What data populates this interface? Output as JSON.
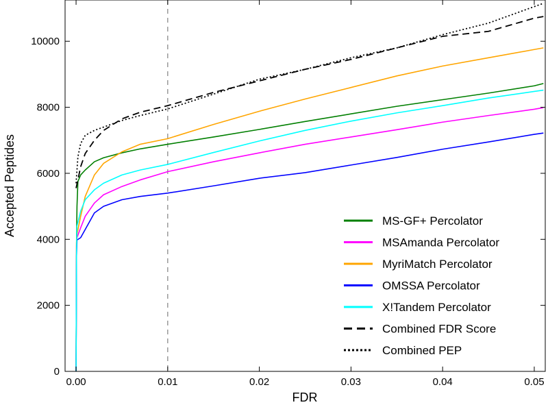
{
  "chart_data": {
    "type": "line",
    "title": "",
    "xlabel": "FDR",
    "ylabel": "Accepted Peptides",
    "xlim": [
      -0.0012,
      0.0512
    ],
    "ylim": [
      0,
      11250
    ],
    "x_ticks": [
      0.0,
      0.01,
      0.02,
      0.03,
      0.04,
      0.05
    ],
    "x_tick_labels": [
      "0.00",
      "0.01",
      "0.02",
      "0.03",
      "0.04",
      "0.05"
    ],
    "y_ticks": [
      0,
      2000,
      4000,
      6000,
      8000,
      10000
    ],
    "y_tick_labels": [
      "0",
      "2000",
      "4000",
      "6000",
      "8000",
      "10000"
    ],
    "grid": false,
    "legend_position": "lower-right",
    "reference_line": {
      "x": 0.01,
      "style": "dashed",
      "color": "#808080"
    },
    "series": [
      {
        "name": "MS-GF+ Percolator",
        "color": "#007f00",
        "style": "solid",
        "points": [
          [
            0.0,
            0
          ],
          [
            5e-05,
            3900
          ],
          [
            0.0001,
            5000
          ],
          [
            0.0002,
            5750
          ],
          [
            0.0005,
            5950
          ],
          [
            0.001,
            6100
          ],
          [
            0.002,
            6350
          ],
          [
            0.003,
            6470
          ],
          [
            0.005,
            6620
          ],
          [
            0.007,
            6740
          ],
          [
            0.01,
            6880
          ],
          [
            0.015,
            7100
          ],
          [
            0.02,
            7330
          ],
          [
            0.025,
            7570
          ],
          [
            0.03,
            7800
          ],
          [
            0.035,
            8030
          ],
          [
            0.04,
            8230
          ],
          [
            0.045,
            8430
          ],
          [
            0.05,
            8650
          ],
          [
            0.051,
            8720
          ]
        ]
      },
      {
        "name": "MSAmanda Percolator",
        "color": "#ff00ff",
        "style": "solid",
        "points": [
          [
            0.0,
            0
          ],
          [
            5e-05,
            3800
          ],
          [
            0.0001,
            4050
          ],
          [
            0.0005,
            4350
          ],
          [
            0.001,
            4700
          ],
          [
            0.002,
            5100
          ],
          [
            0.003,
            5350
          ],
          [
            0.005,
            5600
          ],
          [
            0.007,
            5800
          ],
          [
            0.01,
            6050
          ],
          [
            0.015,
            6350
          ],
          [
            0.02,
            6620
          ],
          [
            0.025,
            6880
          ],
          [
            0.03,
            7100
          ],
          [
            0.035,
            7320
          ],
          [
            0.04,
            7550
          ],
          [
            0.045,
            7750
          ],
          [
            0.05,
            7940
          ],
          [
            0.051,
            7990
          ]
        ]
      },
      {
        "name": "MyriMatch Percolator",
        "color": "#ffa500",
        "style": "solid",
        "points": [
          [
            0.0,
            0
          ],
          [
            5e-05,
            3900
          ],
          [
            0.0001,
            4150
          ],
          [
            0.0005,
            4700
          ],
          [
            0.001,
            5300
          ],
          [
            0.002,
            5950
          ],
          [
            0.003,
            6300
          ],
          [
            0.005,
            6650
          ],
          [
            0.007,
            6880
          ],
          [
            0.01,
            7050
          ],
          [
            0.015,
            7480
          ],
          [
            0.02,
            7880
          ],
          [
            0.025,
            8250
          ],
          [
            0.03,
            8600
          ],
          [
            0.035,
            8950
          ],
          [
            0.04,
            9250
          ],
          [
            0.045,
            9500
          ],
          [
            0.05,
            9750
          ],
          [
            0.051,
            9800
          ]
        ]
      },
      {
        "name": "OMSSA Percolator",
        "color": "#0000ff",
        "style": "solid",
        "points": [
          [
            0.0,
            0
          ],
          [
            5e-05,
            3500
          ],
          [
            0.0001,
            3980
          ],
          [
            0.0005,
            4050
          ],
          [
            0.001,
            4300
          ],
          [
            0.002,
            4800
          ],
          [
            0.003,
            5000
          ],
          [
            0.005,
            5200
          ],
          [
            0.007,
            5300
          ],
          [
            0.01,
            5400
          ],
          [
            0.015,
            5620
          ],
          [
            0.02,
            5850
          ],
          [
            0.025,
            6020
          ],
          [
            0.03,
            6250
          ],
          [
            0.035,
            6480
          ],
          [
            0.04,
            6730
          ],
          [
            0.045,
            6950
          ],
          [
            0.05,
            7180
          ],
          [
            0.051,
            7220
          ]
        ]
      },
      {
        "name": "X!Tandem Percolator",
        "color": "#00ffff",
        "style": "solid",
        "points": [
          [
            0.0,
            0
          ],
          [
            5e-05,
            3600
          ],
          [
            0.0001,
            4400
          ],
          [
            0.0005,
            4850
          ],
          [
            0.001,
            5200
          ],
          [
            0.002,
            5500
          ],
          [
            0.003,
            5700
          ],
          [
            0.005,
            5950
          ],
          [
            0.007,
            6100
          ],
          [
            0.01,
            6270
          ],
          [
            0.015,
            6630
          ],
          [
            0.02,
            6980
          ],
          [
            0.025,
            7300
          ],
          [
            0.03,
            7580
          ],
          [
            0.035,
            7830
          ],
          [
            0.04,
            8050
          ],
          [
            0.045,
            8280
          ],
          [
            0.05,
            8480
          ],
          [
            0.051,
            8520
          ]
        ]
      },
      {
        "name": "Combined FDR Score",
        "color": "#000000",
        "style": "dashed",
        "points": [
          [
            0.0,
            5550
          ],
          [
            0.0002,
            5800
          ],
          [
            0.0005,
            6200
          ],
          [
            0.001,
            6600
          ],
          [
            0.002,
            7000
          ],
          [
            0.003,
            7300
          ],
          [
            0.005,
            7650
          ],
          [
            0.007,
            7850
          ],
          [
            0.01,
            8050
          ],
          [
            0.015,
            8450
          ],
          [
            0.02,
            8800
          ],
          [
            0.025,
            9150
          ],
          [
            0.03,
            9450
          ],
          [
            0.035,
            9800
          ],
          [
            0.04,
            10150
          ],
          [
            0.045,
            10300
          ],
          [
            0.05,
            10700
          ],
          [
            0.051,
            10750
          ]
        ]
      },
      {
        "name": "Combined PEP",
        "color": "#000000",
        "style": "dotted",
        "points": [
          [
            0.0,
            5700
          ],
          [
            0.0002,
            6500
          ],
          [
            0.0005,
            6900
          ],
          [
            0.001,
            7150
          ],
          [
            0.002,
            7300
          ],
          [
            0.003,
            7400
          ],
          [
            0.005,
            7600
          ],
          [
            0.007,
            7750
          ],
          [
            0.01,
            7950
          ],
          [
            0.015,
            8400
          ],
          [
            0.02,
            8850
          ],
          [
            0.025,
            9150
          ],
          [
            0.03,
            9500
          ],
          [
            0.035,
            9800
          ],
          [
            0.04,
            10200
          ],
          [
            0.045,
            10550
          ],
          [
            0.05,
            11050
          ],
          [
            0.051,
            11150
          ]
        ]
      }
    ]
  }
}
